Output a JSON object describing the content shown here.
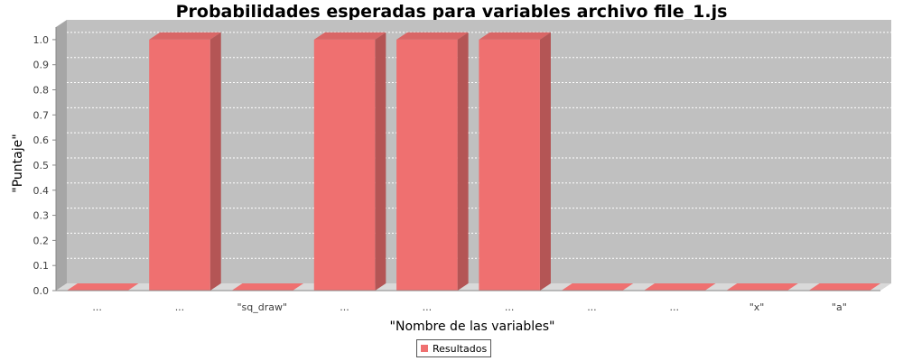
{
  "chart_data": {
    "type": "bar",
    "title": "Probabilidades esperadas para variables archivo file_1.js",
    "xlabel": "\"Nombre de las variables\"",
    "ylabel": "\"Puntaje\"",
    "categories": [
      "...",
      "...",
      "\"sq_draw\"",
      "...",
      "...",
      "...",
      "...",
      "...",
      "\"x\"",
      "\"a\""
    ],
    "series": [
      {
        "name": "Resultados",
        "values": [
          0.0,
          1.0,
          0.0,
          1.0,
          1.0,
          1.0,
          0.0,
          0.0,
          0.0,
          0.0
        ]
      }
    ],
    "yticks": [
      0.0,
      0.1,
      0.2,
      0.3,
      0.4,
      0.5,
      0.6,
      0.7,
      0.8,
      0.9,
      1.0
    ],
    "ytick_labels": [
      "0.0",
      "0.1",
      "0.2",
      "0.3",
      "0.4",
      "0.5",
      "0.6",
      "0.7",
      "0.8",
      "0.9",
      "1.0"
    ],
    "ylim": [
      0,
      1.05
    ],
    "grid": true,
    "legend_position": "bottom-center",
    "colors": {
      "bar_front": "#ef7070",
      "bar_side": "#b45555",
      "bar_top": "#d96666",
      "plot_back": "#c0c0c0",
      "plot_wall": "#a6a6a6",
      "plot_floor": "#d9d9d9",
      "grid": "#ffffff"
    }
  }
}
